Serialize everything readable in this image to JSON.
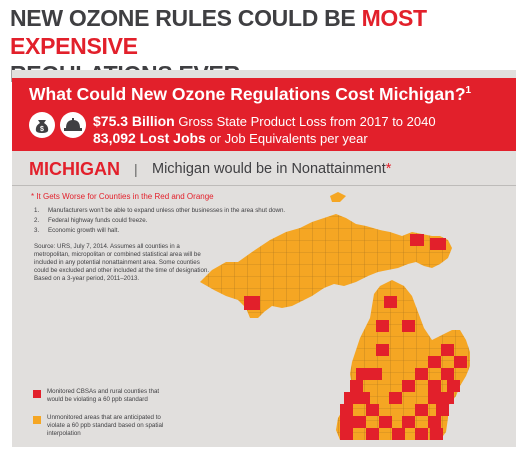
{
  "headline": {
    "part1": "NEW OZONE RULES COULD BE ",
    "highlight": "MOST EXPENSIVE",
    "part2": "REGULATIONS EVER"
  },
  "header_box": {
    "title": "What Could New Ozone Regulations Cost Michigan?",
    "footnote": "1",
    "stat1_value": "$75.3 Billion",
    "stat1_text": " Gross State Product Loss from 2017 to 2040",
    "stat2_value": "83,092 Lost Jobs",
    "stat2_text": " or Job Equivalents per year",
    "icons": [
      "money-bag-icon",
      "hard-hat-icon"
    ]
  },
  "state_row": {
    "name": "MICHIGAN",
    "separator": "|",
    "status": "Michigan would be in Nonattainment",
    "asterisk": "*"
  },
  "notes": {
    "title": "* It Gets Worse for Counties in the Red and Orange",
    "items": [
      {
        "num": "1.",
        "text": "Manufacturers won't be able to expand unless other businesses in the area shut down."
      },
      {
        "num": "2.",
        "text": "Federal highway funds could freeze."
      },
      {
        "num": "3.",
        "text": "Economic growth will halt."
      }
    ],
    "source": "Source: URS, July 7, 2014. Assumes all counties in a metropolitan, micropolitan or combined statistical area will be included in any potential nonattainment area. Some counties could be excluded and other included at the time of designation. Based on a 3-year period, 2011–2013."
  },
  "legend": [
    {
      "color": "#e2202b",
      "text": "Monitored CBSAs and rural counties that would be violating a 60 ppb standard"
    },
    {
      "color": "#f5a623",
      "text": "Unmonitored areas that are anticipated to violate a 60 ppb standard based on spatial interpolation"
    }
  ],
  "colors": {
    "red": "#e2202b",
    "orange": "#f5a623",
    "panel": "#e1dfdd",
    "grid": "#6a4b1f"
  }
}
